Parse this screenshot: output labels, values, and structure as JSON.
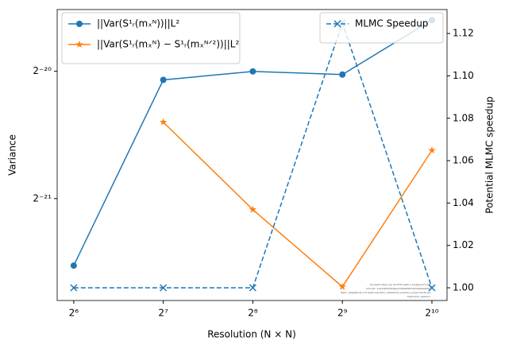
{
  "chart_data": {
    "type": "line",
    "x_label": "Resolution (N × N)",
    "y_label": "Variance",
    "y2_label": "Potential MLMC speedup",
    "x": [
      64,
      128,
      256,
      512,
      1024
    ],
    "xscale": "log2",
    "yscale": "log2",
    "xlim": [
      56.3,
      1151
    ],
    "ylim": [
      2.737e-07,
      1.3349e-06
    ],
    "y2lim": [
      0.994,
      1.1313
    ],
    "xticks": [
      {
        "value": 64,
        "label": "2⁶"
      },
      {
        "value": 128,
        "label": "2⁷"
      },
      {
        "value": 256,
        "label": "2⁸"
      },
      {
        "value": 512,
        "label": "2⁹"
      },
      {
        "value": 1024,
        "label": "2¹⁰"
      }
    ],
    "yticks": [
      {
        "value": 4.76837e-07,
        "label": "2⁻²¹"
      },
      {
        "value": 9.53674e-07,
        "label": "2⁻²⁰"
      }
    ],
    "y2ticks": [
      {
        "value": 1,
        "label": "1.00"
      },
      {
        "value": 1.02,
        "label": "1.02"
      },
      {
        "value": 1.04,
        "label": "1.04"
      },
      {
        "value": 1.06,
        "label": "1.06"
      },
      {
        "value": 1.08,
        "label": "1.08"
      },
      {
        "value": 1.1,
        "label": "1.10"
      },
      {
        "value": 1.12,
        "label": "1.12"
      }
    ],
    "series": [
      {
        "name": "||Var(S¹ᵣ(mₓᴺ))||L²",
        "color": "#1f77b4",
        "marker": "circle",
        "linestyle": "solid",
        "values": [
          3.31e-07,
          9.1e-07,
          9.53e-07,
          9.37e-07,
          1.26e-06
        ]
      },
      {
        "name": "||Var(S¹ᵣ(mₓᴺ) − S¹ᵣ(mₓᴺᐟ²))||L²",
        "color": "#ff7f0e",
        "marker": "star",
        "linestyle": "solid",
        "values": [
          null,
          7.23e-07,
          4.49e-07,
          2.95e-07,
          6.2e-07
        ]
      },
      {
        "name": "MLMC Speedup",
        "color": "#1f77b4",
        "marker": "x",
        "linestyle": "dashed",
        "axis": "y2",
        "values": [
          1,
          1,
          1,
          1.125,
          1
        ]
      }
    ],
    "legend_left": "upper left",
    "legend_right": "upper right",
    "watermark": [
      "By Kjetil Olsen Lye @ 0TH2 kjetil.o.lye@gmail.com",
      "Commit: 11413842d4d9ee7226b6f467db0d6e6e4b5a",
      "Repo: git@github.com:kjetil-lye/mlmc_statistical_solutions_experiments.git",
      "Hostname: galerkin"
    ]
  }
}
